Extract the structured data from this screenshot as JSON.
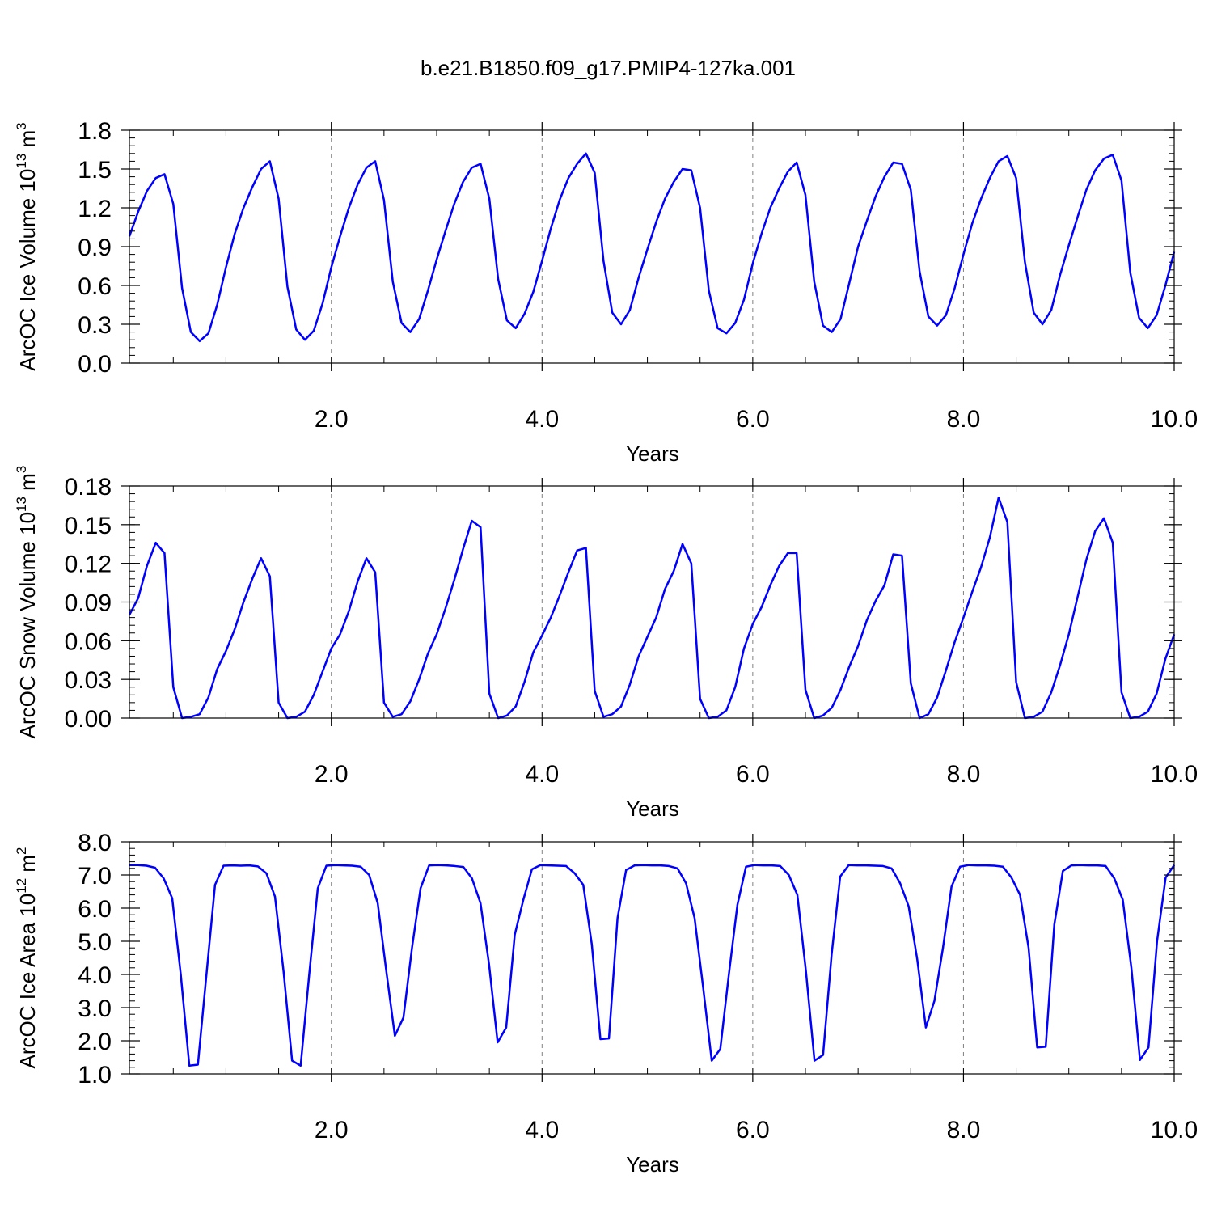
{
  "title": "b.e21.B1850.f09_g17.PMIP4-127ka.001",
  "line_color": "#0000ff",
  "chart_data": [
    {
      "type": "line",
      "xlabel": "Years",
      "ylabel": "ArcOC Ice Volume 10",
      "ylabel_exp": "13",
      "ylabel_unit": "m",
      "ylabel_unit_exp": "3",
      "xlim": [
        0.0833,
        10.0
      ],
      "ylim": [
        0.0,
        1.8
      ],
      "xticks": [
        2.0,
        4.0,
        6.0,
        8.0,
        10.0
      ],
      "xtick_labels": [
        "2.0",
        "4.0",
        "6.0",
        "8.0",
        "10.0"
      ],
      "yticks": [
        0.0,
        0.3,
        0.6,
        0.9,
        1.2,
        1.5,
        1.8
      ],
      "ytick_labels": [
        "0.0",
        "0.3",
        "0.6",
        "0.9",
        "1.2",
        "1.5",
        "1.8"
      ],
      "grid_x": true,
      "values": [
        0.98,
        1.17,
        1.33,
        1.43,
        1.46,
        1.23,
        0.58,
        0.24,
        0.17,
        0.23,
        0.45,
        0.74,
        1.0,
        1.2,
        1.36,
        1.5,
        1.56,
        1.27,
        0.59,
        0.26,
        0.18,
        0.25,
        0.46,
        0.74,
        0.98,
        1.2,
        1.38,
        1.51,
        1.56,
        1.26,
        0.63,
        0.31,
        0.24,
        0.34,
        0.56,
        0.8,
        1.02,
        1.23,
        1.4,
        1.51,
        1.54,
        1.27,
        0.65,
        0.33,
        0.27,
        0.38,
        0.55,
        0.79,
        1.04,
        1.26,
        1.43,
        1.54,
        1.62,
        1.47,
        0.79,
        0.39,
        0.3,
        0.41,
        0.66,
        0.88,
        1.09,
        1.27,
        1.4,
        1.5,
        1.49,
        1.2,
        0.56,
        0.27,
        0.23,
        0.31,
        0.49,
        0.77,
        1.0,
        1.2,
        1.35,
        1.48,
        1.55,
        1.3,
        0.63,
        0.29,
        0.24,
        0.34,
        0.62,
        0.9,
        1.1,
        1.29,
        1.44,
        1.55,
        1.54,
        1.34,
        0.71,
        0.36,
        0.29,
        0.37,
        0.58,
        0.84,
        1.08,
        1.27,
        1.43,
        1.56,
        1.6,
        1.43,
        0.78,
        0.39,
        0.3,
        0.41,
        0.68,
        0.91,
        1.13,
        1.34,
        1.49,
        1.58,
        1.61,
        1.41,
        0.7,
        0.35,
        0.27,
        0.37,
        0.6,
        0.86
      ]
    },
    {
      "type": "line",
      "xlabel": "Years",
      "ylabel": "ArcOC Snow Volume 10",
      "ylabel_exp": "13",
      "ylabel_unit": "m",
      "ylabel_unit_exp": "3",
      "xlim": [
        0.0833,
        10.0
      ],
      "ylim": [
        0.0,
        0.18
      ],
      "xticks": [
        2.0,
        4.0,
        6.0,
        8.0,
        10.0
      ],
      "xtick_labels": [
        "2.0",
        "4.0",
        "6.0",
        "8.0",
        "10.0"
      ],
      "yticks": [
        0.0,
        0.03,
        0.06,
        0.09,
        0.12,
        0.15,
        0.18
      ],
      "ytick_labels": [
        "0.00",
        "0.03",
        "0.06",
        "0.09",
        "0.12",
        "0.15",
        "0.18"
      ],
      "grid_x": true,
      "values": [
        0.08,
        0.093,
        0.118,
        0.136,
        0.128,
        0.024,
        0.0,
        0.001,
        0.003,
        0.016,
        0.038,
        0.052,
        0.069,
        0.09,
        0.108,
        0.124,
        0.11,
        0.012,
        0.0,
        0.001,
        0.005,
        0.018,
        0.036,
        0.054,
        0.065,
        0.083,
        0.106,
        0.124,
        0.113,
        0.012,
        0.001,
        0.003,
        0.013,
        0.03,
        0.05,
        0.065,
        0.085,
        0.107,
        0.131,
        0.153,
        0.148,
        0.019,
        0.0,
        0.002,
        0.009,
        0.028,
        0.051,
        0.064,
        0.078,
        0.095,
        0.113,
        0.13,
        0.132,
        0.021,
        0.001,
        0.003,
        0.009,
        0.026,
        0.048,
        0.063,
        0.078,
        0.1,
        0.114,
        0.135,
        0.12,
        0.015,
        0.0,
        0.001,
        0.006,
        0.024,
        0.054,
        0.073,
        0.086,
        0.103,
        0.118,
        0.128,
        0.128,
        0.022,
        0.0,
        0.002,
        0.008,
        0.022,
        0.04,
        0.056,
        0.076,
        0.091,
        0.103,
        0.127,
        0.126,
        0.027,
        0.0,
        0.003,
        0.016,
        0.037,
        0.059,
        0.078,
        0.098,
        0.117,
        0.14,
        0.171,
        0.152,
        0.028,
        0.0,
        0.001,
        0.005,
        0.02,
        0.041,
        0.065,
        0.094,
        0.123,
        0.145,
        0.155,
        0.136,
        0.02,
        0.0,
        0.001,
        0.005,
        0.019,
        0.046,
        0.065
      ]
    },
    {
      "type": "line",
      "xlabel": "Years",
      "ylabel": "ArcOC Ice Area 10",
      "ylabel_exp": "12",
      "ylabel_unit": "m",
      "ylabel_unit_exp": "2",
      "xlim": [
        0.0833,
        10.0
      ],
      "ylim": [
        1.0,
        8.0
      ],
      "xticks": [
        2.0,
        4.0,
        6.0,
        8.0,
        10.0
      ],
      "xtick_labels": [
        "2.0",
        "4.0",
        "6.0",
        "8.0",
        "10.0"
      ],
      "yticks": [
        1.0,
        2.0,
        3.0,
        4.0,
        5.0,
        6.0,
        7.0,
        8.0
      ],
      "ytick_labels": [
        "1.0",
        "2.0",
        "3.0",
        "4.0",
        "5.0",
        "6.0",
        "7.0",
        "8.0"
      ],
      "grid_x": true,
      "values": [
        7.3,
        7.3,
        7.28,
        7.22,
        6.9,
        6.3,
        4.0,
        1.25,
        1.28,
        4.0,
        6.7,
        7.28,
        7.29,
        7.28,
        7.29,
        7.26,
        7.05,
        6.35,
        4.1,
        1.4,
        1.25,
        4.0,
        6.6,
        7.28,
        7.3,
        7.29,
        7.28,
        7.25,
        7.0,
        6.15,
        4.1,
        2.15,
        2.7,
        4.8,
        6.6,
        7.29,
        7.3,
        7.29,
        7.27,
        7.24,
        6.9,
        6.15,
        4.3,
        1.95,
        2.4,
        5.2,
        6.25,
        7.17,
        7.3,
        7.29,
        7.28,
        7.27,
        7.05,
        6.7,
        4.9,
        2.05,
        2.07,
        5.7,
        7.15,
        7.29,
        7.3,
        7.29,
        7.29,
        7.27,
        7.2,
        6.75,
        5.7,
        3.6,
        1.4,
        1.75,
        4.0,
        6.1,
        7.25,
        7.3,
        7.29,
        7.29,
        7.27,
        7.0,
        6.4,
        4.1,
        1.4,
        1.57,
        4.6,
        6.95,
        7.3,
        7.29,
        7.29,
        7.28,
        7.27,
        7.2,
        6.75,
        6.05,
        4.45,
        2.4,
        3.2,
        4.8,
        6.65,
        7.25,
        7.3,
        7.29,
        7.29,
        7.28,
        7.25,
        6.92,
        6.4,
        4.8,
        1.8,
        1.82,
        5.5,
        7.12,
        7.29,
        7.3,
        7.29,
        7.29,
        7.27,
        6.9,
        6.25,
        4.2,
        1.42,
        1.8,
        5.0,
        6.92,
        7.3
      ]
    }
  ]
}
